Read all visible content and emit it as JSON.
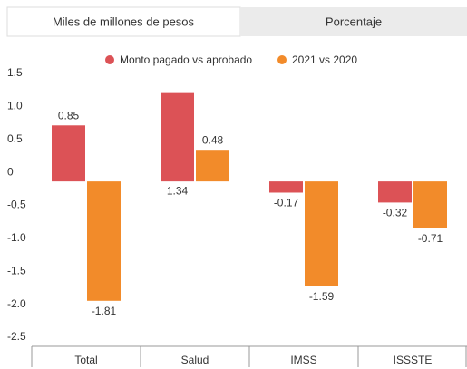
{
  "tabs": [
    "Miles de millones de pesos",
    "Porcentaje"
  ],
  "chart_data": {
    "type": "bar",
    "categories": [
      "Total",
      "Salud",
      "IMSS",
      "ISSSTE"
    ],
    "series": [
      {
        "name": "Monto pagado vs aprobado",
        "color": "#dc5256",
        "values": [
          0.85,
          1.34,
          -0.17,
          -0.32
        ]
      },
      {
        "name": "2021 vs 2020",
        "color": "#f28b2a",
        "values": [
          -1.81,
          0.48,
          -1.59,
          -0.71
        ]
      }
    ],
    "ylim": [
      -2.5,
      1.5
    ],
    "yticks": [
      1.5,
      {
        "value": 1,
        "label": "1.0"
      },
      0.5,
      0,
      -0.5,
      {
        "value": -1,
        "label": "-1.0"
      },
      -1.5,
      {
        "value": -2,
        "label": "-2.0"
      },
      -2.5
    ],
    "grid": false,
    "legend": "top"
  }
}
